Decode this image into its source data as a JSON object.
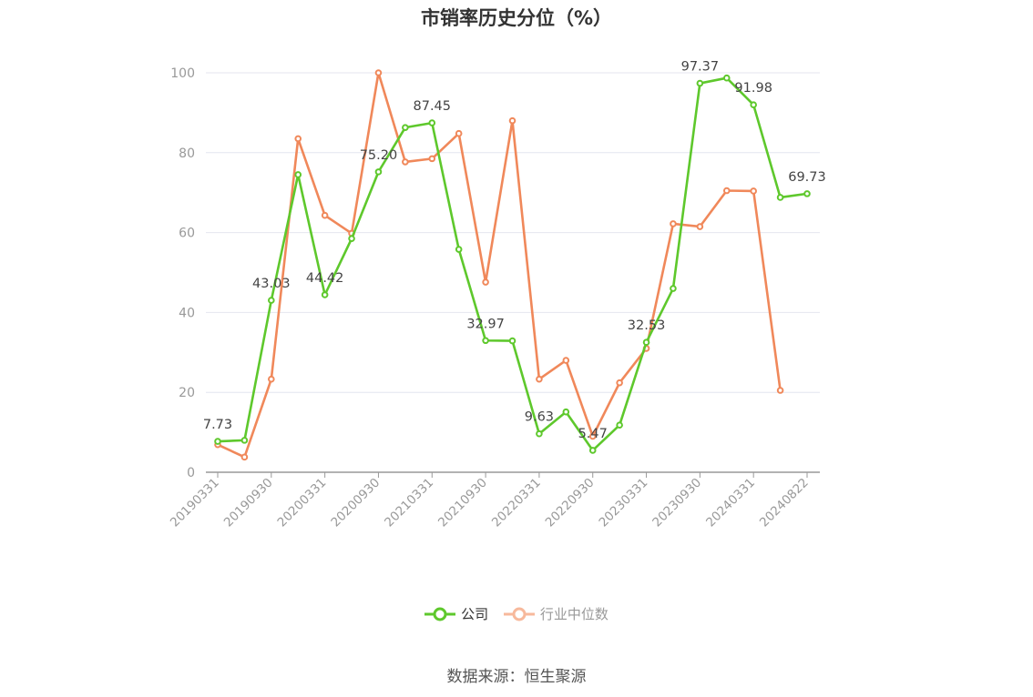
{
  "chart_data": {
    "type": "line",
    "title": "市销率历史分位（%）",
    "x": [
      "20190331",
      "20190630",
      "20190930",
      "20191231",
      "20200331",
      "20200630",
      "20200930",
      "20201231",
      "20210331",
      "20210630",
      "20210930",
      "20211231",
      "20220331",
      "20220630",
      "20220930",
      "20221230",
      "20230331",
      "20230630",
      "20230930",
      "20231229",
      "20240331",
      "20240630",
      "20240822"
    ],
    "x_tick_labels": [
      "20190331",
      "20190930",
      "20200331",
      "20200930",
      "20210331",
      "20210930",
      "20220331",
      "20220930",
      "20230331",
      "20230930",
      "20240331",
      "20240822"
    ],
    "series": [
      {
        "name": "公司",
        "color": "#5ec82c",
        "values": [
          7.73,
          8.0,
          43.03,
          74.5,
          44.42,
          58.5,
          75.2,
          86.3,
          87.45,
          55.8,
          32.97,
          32.9,
          9.63,
          15.1,
          5.47,
          11.8,
          32.53,
          46.0,
          97.37,
          98.7,
          91.98,
          68.8,
          69.73
        ],
        "labels": {
          "0": "7.73",
          "2": "43.03",
          "4": "44.42",
          "6": "75.20",
          "8": "87.45",
          "10": "32.97",
          "12": "9.63",
          "14": "5.47",
          "16": "32.53",
          "18": "97.37",
          "20": "91.98",
          "22": "69.73"
        }
      },
      {
        "name": "行业中位数",
        "color": "#f0885a",
        "values": [
          6.9,
          3.8,
          23.3,
          83.5,
          64.3,
          59.8,
          100.0,
          77.7,
          78.5,
          84.8,
          47.6,
          88.0,
          23.3,
          28.0,
          9.0,
          22.4,
          31.0,
          62.2,
          61.5,
          70.5,
          70.4,
          20.5,
          null
        ]
      }
    ],
    "ylim": [
      0,
      100
    ],
    "y_ticks": [
      0,
      20,
      40,
      60,
      80,
      100
    ],
    "grid": true,
    "legend_position": "bottom-center"
  },
  "legend": {
    "company": "公司",
    "industry": "行业中位数"
  },
  "source": "数据来源：恒生聚源"
}
